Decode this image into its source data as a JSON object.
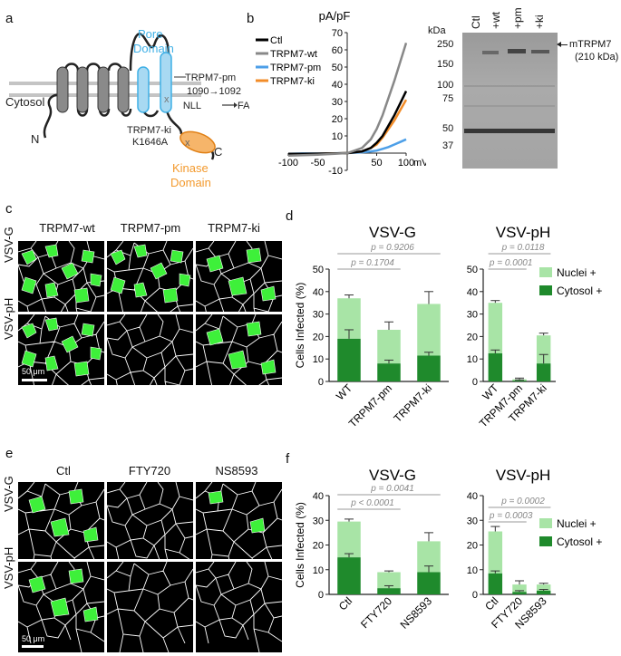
{
  "panels": {
    "a": {
      "label": "a",
      "pore_domain_line1": "Pore",
      "pore_domain_line2": "Domain",
      "cytosol": "Cytosol",
      "n_term": "N",
      "c_term": "C",
      "pm_name": "TRPM7-pm",
      "pm_range": "1090→1092",
      "pm_mut_from": "NLL",
      "pm_mut_to": "FAP",
      "ki_name": "TRPM7-ki",
      "ki_mut": "K1646A",
      "kinase_line1": "Kinase",
      "kinase_line2": "Domain",
      "colors": {
        "pore": "#3fb0e6",
        "kinase": "#f39a2e",
        "helix": "#8a8a8a",
        "membrane": "#bdbdbd"
      }
    },
    "b": {
      "label": "b",
      "blot": {
        "kda": "kDa",
        "lanes": [
          "Ctl",
          "+wt",
          "+pm",
          "+ki"
        ],
        "markers": [
          "250",
          "150",
          "100",
          "75",
          "50",
          "37"
        ],
        "band_name": "mTRPM7",
        "band_size": "(210 kDa)"
      }
    },
    "c": {
      "label": "c",
      "columns": [
        "TRPM7-wt",
        "TRPM7-pm",
        "TRPM7-ki"
      ],
      "rows": [
        "VSV-G",
        "VSV-pH"
      ],
      "scale": "50 μm"
    },
    "d": {
      "label": "d"
    },
    "e": {
      "label": "e",
      "columns": [
        "Ctl",
        "FTY720",
        "NS8593"
      ],
      "rows": [
        "VSV-G",
        "VSV-pH"
      ],
      "scale": "50 μm"
    },
    "f": {
      "label": "f"
    }
  },
  "chart_data": [
    {
      "id": "b-iv",
      "type": "line",
      "ylabel": "pA/pF",
      "xlabel": "mV",
      "xlim": [
        -100,
        100
      ],
      "ylim": [
        -10,
        70
      ],
      "xticks": [
        -100,
        -50,
        50,
        100
      ],
      "yticks": [
        -10,
        10,
        20,
        30,
        40,
        50,
        60,
        70
      ],
      "x": [
        -100,
        -75,
        -50,
        -25,
        0,
        25,
        40,
        50,
        60,
        70,
        80,
        90,
        100
      ],
      "series": [
        {
          "name": "Ctl",
          "color": "#000000",
          "values": [
            -0.5,
            -0.4,
            -0.3,
            -0.2,
            0,
            1,
            3,
            6,
            10,
            16,
            22,
            29,
            36
          ]
        },
        {
          "name": "TRPM7-wt",
          "color": "#888888",
          "values": [
            -1.5,
            -1.2,
            -0.9,
            -0.5,
            0,
            3,
            8,
            14,
            22,
            32,
            42,
            53,
            64
          ]
        },
        {
          "name": "TRPM7-pm",
          "color": "#4d9fe8",
          "values": [
            -0.3,
            -0.2,
            -0.2,
            -0.1,
            0,
            0.5,
            1,
            1.5,
            2.5,
            3.5,
            5,
            6.5,
            8
          ]
        },
        {
          "name": "TRPM7-ki",
          "color": "#f28c28",
          "values": [
            -0.5,
            -0.4,
            -0.3,
            -0.2,
            0,
            1,
            3,
            5,
            9,
            14,
            19,
            25,
            31
          ]
        }
      ]
    },
    {
      "id": "d-vsvg",
      "type": "bar",
      "title": "VSV-G",
      "ylabel": "Cells Infected (%)",
      "ylim": [
        0,
        50
      ],
      "yticks": [
        0,
        10,
        20,
        30,
        40,
        50
      ],
      "categories": [
        "WT",
        "TRPM7-pm",
        "TRPM7-ki"
      ],
      "series": [
        {
          "name": "Cytosol +",
          "color": "#1f8a2c",
          "values": [
            19,
            8,
            11.5
          ],
          "errors": [
            4,
            1.5,
            1.5
          ]
        },
        {
          "name": "Nuclei +",
          "color": "#a8e4a6",
          "values": [
            18,
            15,
            23
          ],
          "errors": [
            1.5,
            3.5,
            5.5
          ]
        }
      ],
      "comparisons": [
        {
          "label": "p = 0.9206",
          "from": 0,
          "to": 2
        },
        {
          "label": "p = 0.1704",
          "from": 0,
          "to": 1
        }
      ]
    },
    {
      "id": "d-vsvph",
      "type": "bar",
      "title": "VSV-pH",
      "ylim": [
        0,
        50
      ],
      "yticks": [
        0,
        10,
        20,
        30,
        40,
        50
      ],
      "categories": [
        "WT",
        "TRPM7-pm",
        "TRPM7-ki"
      ],
      "legend_position": "right",
      "series": [
        {
          "name": "Cytosol +",
          "color": "#1f8a2c",
          "values": [
            12.5,
            0.4,
            8
          ],
          "errors": [
            1.5,
            0.3,
            4
          ]
        },
        {
          "name": "Nuclei +",
          "color": "#a8e4a6",
          "values": [
            22.5,
            0.6,
            12.5
          ],
          "errors": [
            1,
            0.5,
            1
          ]
        }
      ],
      "comparisons": [
        {
          "label": "p = 0.0118",
          "from": 0,
          "to": 2
        },
        {
          "label": "p = 0.0001",
          "from": 0,
          "to": 1
        }
      ]
    },
    {
      "id": "f-vsvg",
      "type": "bar",
      "title": "VSV-G",
      "ylabel": "Cells Infected (%)",
      "ylim": [
        0,
        40
      ],
      "yticks": [
        0,
        10,
        20,
        30,
        40
      ],
      "categories": [
        "Ctl",
        "FTY720",
        "NS8593"
      ],
      "series": [
        {
          "name": "Cytosol +",
          "color": "#1f8a2c",
          "values": [
            15,
            2.5,
            9
          ],
          "errors": [
            1.5,
            1,
            2.5
          ]
        },
        {
          "name": "Nuclei +",
          "color": "#a8e4a6",
          "values": [
            14.5,
            6.5,
            12.5
          ],
          "errors": [
            1,
            0.5,
            3.5
          ]
        }
      ],
      "comparisons": [
        {
          "label": "p = 0.0041",
          "from": 0,
          "to": 2
        },
        {
          "label": "p < 0.0001",
          "from": 0,
          "to": 1
        }
      ]
    },
    {
      "id": "f-vsvph",
      "type": "bar",
      "title": "VSV-pH",
      "ylim": [
        0,
        40
      ],
      "yticks": [
        0,
        10,
        20,
        30,
        40
      ],
      "categories": [
        "Ctl",
        "FTY720",
        "NS8593"
      ],
      "legend_position": "right",
      "series": [
        {
          "name": "Cytosol +",
          "color": "#1f8a2c",
          "values": [
            8.5,
            1,
            1.5
          ],
          "errors": [
            1,
            0.5,
            0.5
          ]
        },
        {
          "name": "Nuclei +",
          "color": "#a8e4a6",
          "values": [
            17,
            3,
            2.5
          ],
          "errors": [
            2,
            1.5,
            0.5
          ]
        }
      ],
      "comparisons": [
        {
          "label": "p = 0.0002",
          "from": 0,
          "to": 2
        },
        {
          "label": "p = 0.0003",
          "from": 0,
          "to": 1
        }
      ]
    }
  ]
}
